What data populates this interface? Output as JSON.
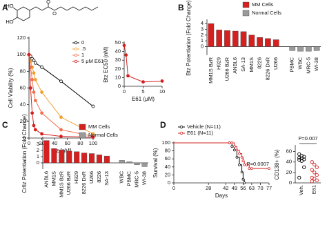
{
  "structure": {
    "labels": [
      "HO",
      "HO",
      "O",
      "O"
    ]
  },
  "chart_data": [
    {
      "type": "line",
      "panel": "A",
      "xlabel": "Btz [nM]",
      "ylabel": "Cell Viability (%)",
      "x": [
        0,
        2.5,
        5,
        7.5,
        10,
        20,
        50,
        100
      ],
      "xlim": [
        0,
        100
      ],
      "xticks": [
        0,
        20,
        40,
        60,
        80,
        100
      ],
      "ylim": [
        0,
        120
      ],
      "yticks": [
        0,
        20,
        40,
        60,
        80,
        100,
        120
      ],
      "series": [
        {
          "name": "0",
          "color": "#000000",
          "values": [
            100,
            98,
            95,
            93,
            90,
            85,
            68,
            38
          ]
        },
        {
          "name": ".5",
          "color": "#f0a030",
          "values": [
            100,
            92,
            85,
            78,
            70,
            55,
            25,
            5
          ]
        },
        {
          "name": "1",
          "color": "#f07050",
          "values": [
            100,
            85,
            70,
            55,
            45,
            30,
            10,
            2
          ]
        },
        {
          "name": "5 μM E61",
          "color": "#d62020",
          "values": [
            100,
            60,
            30,
            15,
            10,
            5,
            2,
            1
          ]
        }
      ]
    },
    {
      "type": "line",
      "xlabel": "E61 (μM)",
      "ylabel": "Btz EC50 (nM)",
      "x": [
        0,
        0.5,
        1,
        5,
        10
      ],
      "xlim": [
        0,
        10
      ],
      "xticks": [
        0,
        5,
        10
      ],
      "ylim": [
        0,
        50
      ],
      "yticks": [
        0,
        10,
        20,
        30,
        40,
        50
      ],
      "series": [
        {
          "color": "#d62020",
          "values": [
            47,
            36,
            12,
            5,
            6
          ]
        }
      ]
    },
    {
      "type": "bar",
      "panel": "B",
      "ylabel": "Btz Potentiation (Fold Change)",
      "categories": [
        "MM1S BzR",
        "H929",
        "U266 BzR",
        "ANBL6",
        "SA-13",
        "MM1S",
        "8226",
        "8226 DxR",
        "U266",
        null,
        "PBMC",
        "WBC",
        "MRC-5",
        "WI-38"
      ],
      "ylim": [
        -1.5,
        4.5
      ],
      "yticks": [
        0,
        1,
        2,
        3,
        4
      ],
      "series": [
        {
          "name": "MM Cells",
          "color": "#d62020",
          "values": [
            4.0,
            2.9,
            2.8,
            2.7,
            2.6,
            2.0,
            1.6,
            1.4,
            1.2,
            null,
            null,
            null,
            null,
            null
          ]
        },
        {
          "name": "Normal Cells",
          "color": "#9a9a9a",
          "values": [
            null,
            null,
            null,
            null,
            null,
            null,
            null,
            null,
            null,
            null,
            -0.7,
            -0.8,
            -0.8,
            -0.7
          ]
        }
      ]
    },
    {
      "type": "bar",
      "panel": "C",
      "ylabel": "Crfiz Potentiation (Fold Change)",
      "categories": [
        "ANBL6",
        "MM1S",
        "MM1S BzR",
        "U266 BzR",
        "H929",
        "8226 DxR",
        "U266",
        "8226",
        "SA-13",
        null,
        "WBC",
        "PBMC",
        "MRC-5",
        "WI-38"
      ],
      "ylim": [
        -1,
        4
      ],
      "yticks": [
        0,
        1,
        2,
        3
      ],
      "series": [
        {
          "name": "MM Cells",
          "color": "#d62020",
          "values": [
            3.6,
            2.3,
            2.1,
            1.9,
            1.8,
            1.6,
            1.5,
            1.3,
            1.1,
            null,
            null,
            null,
            null,
            null
          ]
        },
        {
          "name": "Normal Cells",
          "color": "#9a9a9a",
          "values": [
            null,
            null,
            null,
            null,
            null,
            null,
            null,
            null,
            null,
            null,
            0.4,
            0.2,
            -0.3,
            -0.6
          ]
        }
      ]
    },
    {
      "type": "step",
      "panel": "D",
      "xlabel": "Days",
      "ylabel": "Survival (%)",
      "annotation": "P=0.0007",
      "x": [
        0,
        45,
        47,
        49,
        51,
        53,
        55,
        56,
        57,
        59,
        61,
        63,
        77
      ],
      "xlim": [
        0,
        77
      ],
      "xticks": [
        0,
        28,
        42,
        49,
        56,
        63,
        70,
        77
      ],
      "ylim": [
        0,
        100
      ],
      "yticks": [
        0,
        20,
        40,
        60,
        80,
        100
      ],
      "series": [
        {
          "name": "Vehicle (N=11)",
          "color": "#000000",
          "values": [
            100,
            100,
            91,
            82,
            64,
            45,
            27,
            9,
            0,
            null,
            null,
            null,
            null
          ]
        },
        {
          "name": "E61 (N=11)",
          "color": "#d62020",
          "values": [
            100,
            100,
            100,
            91,
            82,
            73,
            64,
            55,
            45,
            45,
            36,
            36,
            36
          ]
        }
      ]
    },
    {
      "type": "strip",
      "ylabel": "CD138+ (%)",
      "annotation": "P=0.007",
      "categories": [
        "Veh.",
        "E61"
      ],
      "ylim": [
        0,
        70
      ],
      "yticks": [
        0,
        20,
        40,
        60
      ],
      "series": [
        {
          "color": "#000000",
          "values": [
            55,
            52,
            50,
            48,
            47,
            45,
            44,
            42,
            30,
            10
          ]
        },
        {
          "color": "#d62020",
          "values": [
            40,
            35,
            30,
            25,
            20,
            15,
            10,
            8,
            5,
            3
          ]
        }
      ]
    }
  ]
}
